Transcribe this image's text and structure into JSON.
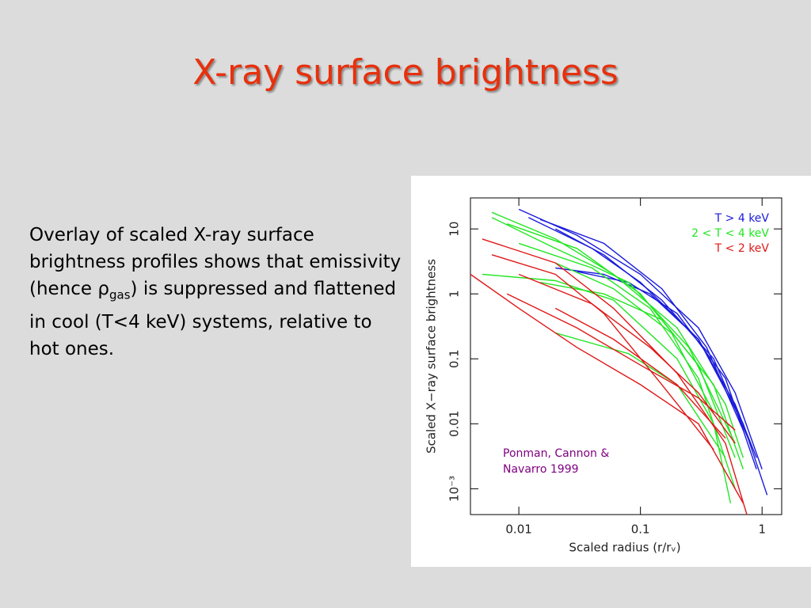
{
  "title": "X-ray surface brightness",
  "body": [
    "Overlay of scaled X-ray surface brightness profiles shows that emissivity (hence ",
    "ρ",
    "gas",
    ") is suppressed and flattened in cool (T<4 keV) systems, relative to hot ones."
  ],
  "chart_data": {
    "type": "line",
    "x_label": "Scaled radius (r/rᵥ)",
    "y_label": "Scaled X−ray surface brightness",
    "annotation": [
      "Ponman, Cannon &",
      "Navarro 1999"
    ],
    "log_x": true,
    "log_y": true,
    "legend": "upper right",
    "xlim": [
      0.004,
      1.45
    ],
    "ylim": [
      0.0004,
      30
    ],
    "xticks": [
      0.01,
      0.1,
      1
    ],
    "yticks": [
      {
        "value": 0.001,
        "label": "10⁻³"
      },
      0.01,
      0.1,
      1,
      10
    ],
    "series": [
      {
        "name": "T > 4 keV",
        "color": "#1a1adc",
        "curves": [
          {
            "x": [
              0.01,
              0.03,
              0.1,
              0.3,
              0.6,
              1.0
            ],
            "values": [
              20,
              8,
              2,
              0.3,
              0.03,
              0.002
            ]
          },
          {
            "x": [
              0.012,
              0.04,
              0.1,
              0.3,
              0.7,
              1.1
            ],
            "values": [
              15,
              5,
              1.5,
              0.2,
              0.01,
              0.0008
            ]
          },
          {
            "x": [
              0.02,
              0.05,
              0.15,
              0.4,
              0.8
            ],
            "values": [
              10,
              4,
              0.8,
              0.1,
              0.005
            ]
          },
          {
            "x": [
              0.03,
              0.08,
              0.2,
              0.5,
              0.9
            ],
            "values": [
              2.2,
              1.5,
              0.5,
              0.05,
              0.002
            ]
          },
          {
            "x": [
              0.02,
              0.05,
              0.12,
              0.3,
              0.6,
              0.9
            ],
            "values": [
              2.5,
              2,
              1,
              0.2,
              0.02,
              0.003
            ]
          },
          {
            "x": [
              0.015,
              0.05,
              0.15,
              0.35,
              0.7
            ],
            "values": [
              14,
              6,
              1.2,
              0.15,
              0.008
            ]
          }
        ]
      },
      {
        "name": "2 < T < 4 keV",
        "color": "#22e622",
        "curves": [
          {
            "x": [
              0.006,
              0.02,
              0.06,
              0.2,
              0.5,
              0.7
            ],
            "values": [
              18,
              7,
              2,
              0.3,
              0.02,
              0.003
            ]
          },
          {
            "x": [
              0.006,
              0.02,
              0.08,
              0.25,
              0.6
            ],
            "values": [
              15,
              5,
              1.5,
              0.15,
              0.005
            ]
          },
          {
            "x": [
              0.008,
              0.03,
              0.1,
              0.3,
              0.6
            ],
            "values": [
              12,
              5,
              1,
              0.08,
              0.003
            ]
          },
          {
            "x": [
              0.005,
              0.02,
              0.06,
              0.2,
              0.4,
              0.55
            ],
            "values": [
              2,
              1.6,
              0.8,
              0.1,
              0.01,
              0.0006
            ]
          },
          {
            "x": [
              0.015,
              0.05,
              0.15,
              0.4,
              0.7
            ],
            "values": [
              1.5,
              1,
              0.4,
              0.04,
              0.002
            ]
          },
          {
            "x": [
              0.02,
              0.08,
              0.2,
              0.5
            ],
            "values": [
              0.25,
              0.12,
              0.04,
              0.003
            ]
          },
          {
            "x": [
              0.01,
              0.04,
              0.12,
              0.3,
              0.6
            ],
            "values": [
              6,
              2.5,
              0.6,
              0.05,
              0.001
            ]
          },
          {
            "x": [
              0.02,
              0.06,
              0.18,
              0.4
            ],
            "values": [
              3,
              1.2,
              0.25,
              0.015
            ]
          }
        ]
      },
      {
        "name": "T < 2 keV",
        "color": "#e01818",
        "curves": [
          {
            "x": [
              0.004,
              0.01,
              0.03,
              0.1,
              0.3,
              0.7
            ],
            "values": [
              2,
              0.6,
              0.15,
              0.04,
              0.01,
              0.0006
            ]
          },
          {
            "x": [
              0.005,
              0.02,
              0.06,
              0.2,
              0.5,
              0.75
            ],
            "values": [
              7,
              3,
              0.6,
              0.06,
              0.005,
              0.0004
            ]
          },
          {
            "x": [
              0.006,
              0.02,
              0.05,
              0.15,
              0.4
            ],
            "values": [
              4,
              2,
              0.5,
              0.04,
              0.004
            ]
          },
          {
            "x": [
              0.008,
              0.03,
              0.1,
              0.3,
              0.6
            ],
            "values": [
              1,
              0.3,
              0.08,
              0.025,
              0.008
            ]
          },
          {
            "x": [
              0.01,
              0.04,
              0.12,
              0.3,
              0.6
            ],
            "values": [
              2,
              0.7,
              0.15,
              0.03,
              0.005
            ]
          },
          {
            "x": [
              0.02,
              0.06,
              0.2,
              0.5
            ],
            "values": [
              0.6,
              0.2,
              0.04,
              0.006
            ]
          }
        ]
      }
    ]
  }
}
